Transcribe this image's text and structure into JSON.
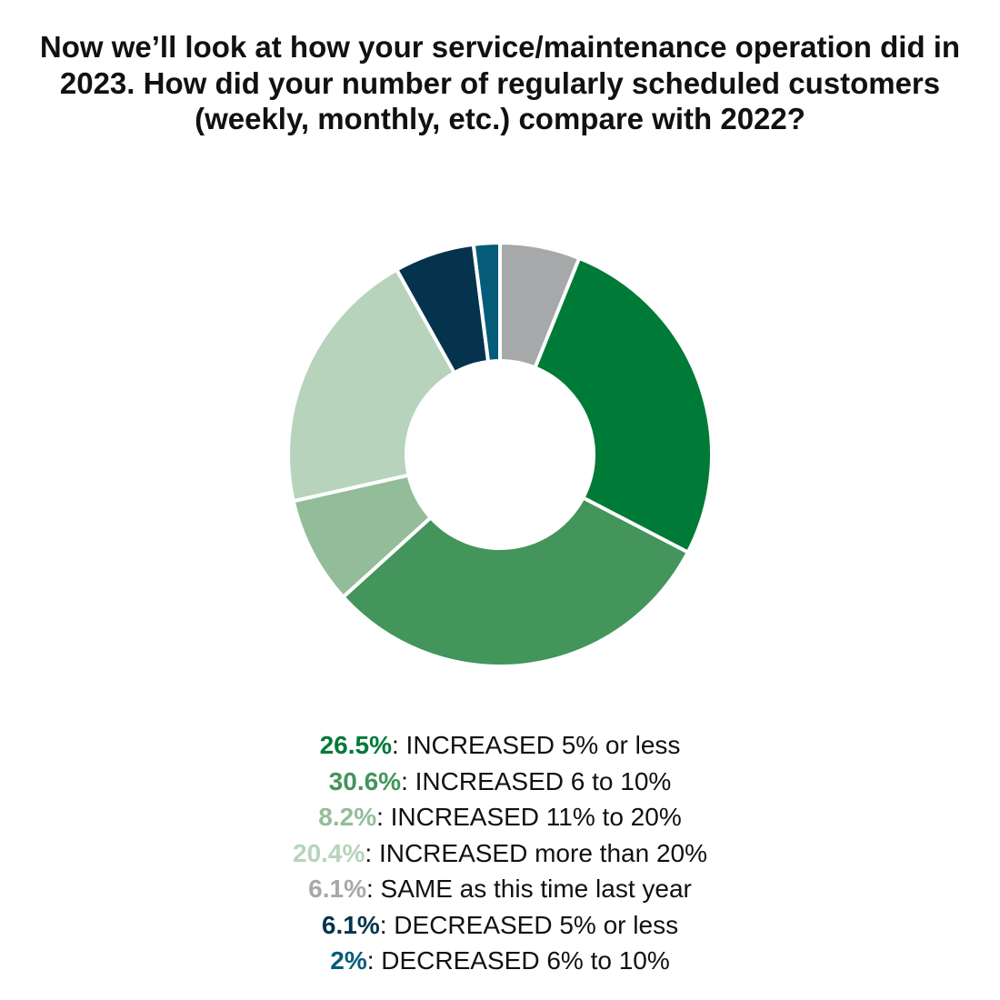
{
  "chart_data": {
    "type": "pie",
    "title": "Now we’ll look at how your service/maintenance operation did in 2023. How did your number of regularly scheduled customers (weekly, monthly, etc.) compare with 2022?",
    "slices": [
      {
        "label": "INCREASED 5% or less",
        "value": 26.5,
        "display": "26.5%",
        "color": "#007a37"
      },
      {
        "label": "INCREASED 6 to 10%",
        "value": 30.6,
        "display": "30.6%",
        "color": "#43955b"
      },
      {
        "label": "INCREASED 11% to 20%",
        "value": 8.2,
        "display": "8.2%",
        "color": "#93bd98"
      },
      {
        "label": "INCREASED more than 20%",
        "value": 20.4,
        "display": "20.4%",
        "color": "#b7d3bc"
      },
      {
        "label": "SAME as this time last year",
        "value": 6.1,
        "display": "6.1%",
        "color": "#a7a8aa"
      },
      {
        "label": "DECREASED 5% or less",
        "value": 6.1,
        "display": "6.1%",
        "color": "#05334d"
      },
      {
        "label": "DECREASED 6% to 10%",
        "value": 2,
        "display": "2%",
        "color": "#045c79"
      }
    ],
    "draw_order": [
      4,
      0,
      1,
      2,
      3,
      5,
      6
    ],
    "donut": true,
    "legend_position": "bottom"
  }
}
